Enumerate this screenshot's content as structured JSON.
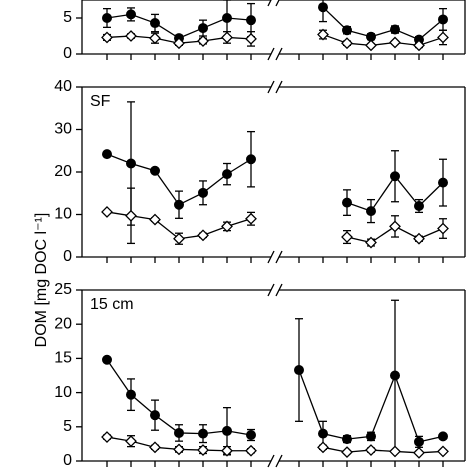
{
  "ylabel": "DOM [mg DOC l⁻¹]",
  "chart_data": [
    {
      "type": "line",
      "ylim": [
        0,
        7.5
      ],
      "yticks": [
        0,
        5
      ],
      "categories": [
        null,
        null,
        null,
        null,
        null,
        null,
        null,
        null,
        null,
        null,
        null,
        null,
        null,
        null,
        null
      ],
      "series": [
        {
          "marker": "circle",
          "color": "#000000",
          "values": [
            5.0,
            5.5,
            4.3,
            2.2,
            3.6,
            5.0,
            4.7,
            null,
            null,
            6.5,
            3.3,
            2.4,
            3.4,
            2.0,
            4.8
          ],
          "errors": [
            1.3,
            0.9,
            1.2,
            0.4,
            1.1,
            2.5,
            2.3,
            null,
            null,
            2.0,
            0.5,
            0.4,
            0.5,
            0.4,
            1.5
          ]
        },
        {
          "marker": "diamond",
          "color": "#ffffff",
          "values": [
            2.3,
            2.5,
            2.2,
            1.5,
            1.8,
            2.3,
            2.1,
            null,
            null,
            2.7,
            1.5,
            1.2,
            1.6,
            1.2,
            2.3
          ],
          "errors": [
            0.4,
            0.3,
            0.7,
            0.3,
            0.4,
            0.8,
            1.0,
            null,
            null,
            0.6,
            0.3,
            0.2,
            0.2,
            0.3,
            1.0
          ]
        }
      ]
    },
    {
      "type": "line",
      "ylim": [
        0,
        40
      ],
      "yticks": [
        0,
        10,
        20,
        30,
        40
      ],
      "annotation": "SF",
      "categories": [
        null,
        null,
        null,
        null,
        null,
        null,
        null,
        null,
        null,
        null,
        null,
        null,
        null,
        null,
        null
      ],
      "series": [
        {
          "marker": "circle",
          "color": "#000000",
          "values": [
            24.2,
            22.0,
            20.3,
            12.3,
            15.1,
            19.5,
            23.0,
            null,
            null,
            null,
            12.8,
            10.8,
            19.0,
            12.0,
            17.5
          ],
          "errors": [
            0.3,
            14.5,
            0.3,
            3.2,
            2.8,
            2.5,
            6.5,
            null,
            null,
            null,
            3.0,
            2.7,
            6.0,
            1.5,
            5.5
          ]
        },
        {
          "marker": "diamond",
          "color": "#ffffff",
          "values": [
            10.6,
            9.7,
            8.8,
            4.3,
            5.1,
            7.2,
            9.0,
            null,
            null,
            null,
            4.7,
            3.4,
            7.2,
            4.3,
            6.7
          ],
          "errors": [
            0.3,
            6.5,
            0.4,
            1.3,
            0.5,
            1.0,
            1.5,
            null,
            null,
            null,
            1.5,
            0.8,
            2.5,
            0.6,
            2.3
          ]
        }
      ]
    },
    {
      "type": "line",
      "ylim": [
        0,
        25
      ],
      "yticks": [
        0,
        5,
        10,
        15,
        20,
        25
      ],
      "annotation": "15 cm",
      "categories": [
        null,
        null,
        null,
        null,
        null,
        null,
        null,
        null,
        null,
        null,
        null,
        null,
        null,
        null,
        null
      ],
      "series": [
        {
          "marker": "circle",
          "color": "#000000",
          "values": [
            14.8,
            9.7,
            6.7,
            4.1,
            4.0,
            4.4,
            3.8,
            null,
            13.3,
            4.0,
            3.2,
            3.6,
            12.5,
            2.8,
            3.6
          ],
          "errors": [
            0.3,
            2.3,
            2.2,
            1.2,
            1.3,
            3.4,
            0.8,
            null,
            7.5,
            1.8,
            0.5,
            0.6,
            11.0,
            0.8,
            0.3
          ]
        },
        {
          "marker": "diamond",
          "color": "#ffffff",
          "values": [
            3.5,
            2.9,
            2.0,
            1.7,
            1.6,
            1.5,
            1.5,
            null,
            null,
            2.0,
            1.3,
            1.6,
            1.4,
            1.2,
            1.4
          ],
          "errors": [
            0.3,
            0.8,
            0.3,
            0.4,
            0.5,
            0.6,
            0.3,
            null,
            null,
            0.3,
            0.2,
            0.3,
            0.2,
            0.2,
            0.2
          ]
        }
      ]
    }
  ]
}
